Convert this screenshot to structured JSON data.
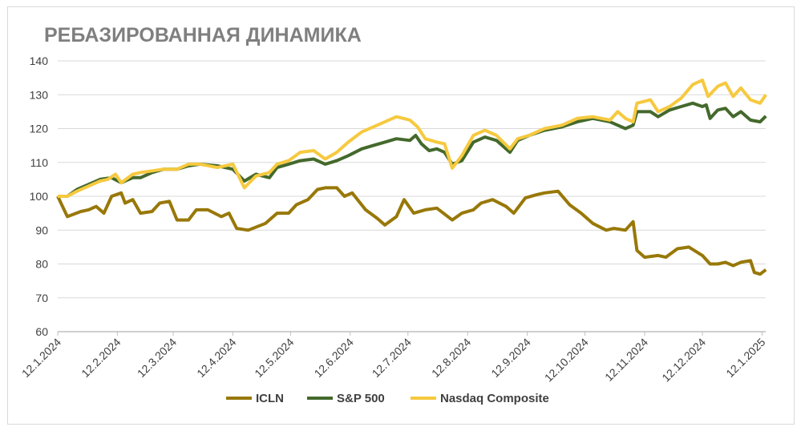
{
  "chart_data": {
    "type": "line",
    "title": "РЕБАЗИРОВАННАЯ ДИНАМИКА",
    "xlabel": "",
    "ylabel": "",
    "x_unit": "days since 12.1.2024",
    "ylim": [
      60,
      140
    ],
    "yticks": [
      60,
      70,
      80,
      90,
      100,
      110,
      120,
      130,
      140
    ],
    "xticks": [
      {
        "day": 0,
        "label": "12.1.2024"
      },
      {
        "day": 31,
        "label": "12.2.2024"
      },
      {
        "day": 60,
        "label": "12.3.2024"
      },
      {
        "day": 91,
        "label": "12.4.2024"
      },
      {
        "day": 121,
        "label": "12.5.2024"
      },
      {
        "day": 152,
        "label": "12.6.2024"
      },
      {
        "day": 182,
        "label": "12.7.2024"
      },
      {
        "day": 213,
        "label": "12.8.2024"
      },
      {
        "day": 244,
        "label": "12.9.2024"
      },
      {
        "day": 274,
        "label": "12.10.2024"
      },
      {
        "day": 305,
        "label": "12.11.2024"
      },
      {
        "day": 335,
        "label": "12.12.2024"
      },
      {
        "day": 366,
        "label": "12.1.2025"
      }
    ],
    "xlim": [
      0,
      368
    ],
    "grid": true,
    "legend_position": "bottom",
    "series": [
      {
        "name": "ICLN",
        "color": "#987808",
        "points": [
          [
            0,
            100
          ],
          [
            5,
            94
          ],
          [
            12,
            95.5
          ],
          [
            16,
            96
          ],
          [
            20,
            97
          ],
          [
            24,
            95
          ],
          [
            28,
            100
          ],
          [
            33,
            101
          ],
          [
            35,
            98
          ],
          [
            39,
            99
          ],
          [
            43,
            95
          ],
          [
            49,
            95.5
          ],
          [
            53,
            98
          ],
          [
            58,
            98.5
          ],
          [
            62,
            93
          ],
          [
            68,
            93
          ],
          [
            72,
            96
          ],
          [
            78,
            96
          ],
          [
            85,
            94
          ],
          [
            89,
            95
          ],
          [
            93,
            90.5
          ],
          [
            99,
            90
          ],
          [
            108,
            92
          ],
          [
            114,
            95
          ],
          [
            120,
            95
          ],
          [
            124,
            97.5
          ],
          [
            130,
            99
          ],
          [
            135,
            102
          ],
          [
            139,
            102.5
          ],
          [
            145,
            102.5
          ],
          [
            149,
            100
          ],
          [
            153,
            101
          ],
          [
            160,
            96
          ],
          [
            166,
            93.5
          ],
          [
            170,
            91.5
          ],
          [
            176,
            94
          ],
          [
            180,
            99
          ],
          [
            185,
            95
          ],
          [
            191,
            96
          ],
          [
            197,
            96.5
          ],
          [
            205,
            93
          ],
          [
            210,
            95
          ],
          [
            216,
            96
          ],
          [
            220,
            98
          ],
          [
            226,
            99
          ],
          [
            233,
            97
          ],
          [
            237,
            95
          ],
          [
            243,
            99.5
          ],
          [
            249,
            100.5
          ],
          [
            253,
            101
          ],
          [
            260,
            101.5
          ],
          [
            266,
            97.5
          ],
          [
            272,
            95
          ],
          [
            278,
            92
          ],
          [
            285,
            90
          ],
          [
            289,
            90.5
          ],
          [
            295,
            90
          ],
          [
            299,
            92.5
          ],
          [
            301,
            84
          ],
          [
            305,
            82
          ],
          [
            312,
            82.5
          ],
          [
            316,
            82
          ],
          [
            322,
            84.5
          ],
          [
            328,
            85
          ],
          [
            335,
            82.5
          ],
          [
            339,
            80
          ],
          [
            343,
            80
          ],
          [
            347,
            80.5
          ],
          [
            351,
            79.5
          ],
          [
            355,
            80.5
          ],
          [
            360,
            81
          ],
          [
            362,
            77.5
          ],
          [
            365,
            77
          ],
          [
            368,
            78.3
          ]
        ]
      },
      {
        "name": "S&P 500",
        "color": "#44692c",
        "points": [
          [
            0,
            100
          ],
          [
            5,
            100
          ],
          [
            10,
            102
          ],
          [
            16,
            103.5
          ],
          [
            22,
            105
          ],
          [
            28,
            105.5
          ],
          [
            33,
            104
          ],
          [
            39,
            105.5
          ],
          [
            43,
            105.5
          ],
          [
            49,
            107
          ],
          [
            55,
            108
          ],
          [
            62,
            108
          ],
          [
            68,
            109
          ],
          [
            74,
            109.5
          ],
          [
            83,
            109
          ],
          [
            91,
            108
          ],
          [
            97,
            104.5
          ],
          [
            103,
            106.5
          ],
          [
            110,
            105.5
          ],
          [
            114,
            108.5
          ],
          [
            120,
            109.5
          ],
          [
            126,
            110.5
          ],
          [
            133,
            111
          ],
          [
            139,
            109.5
          ],
          [
            145,
            110.5
          ],
          [
            151,
            112
          ],
          [
            158,
            114
          ],
          [
            164,
            115
          ],
          [
            170,
            116
          ],
          [
            176,
            117
          ],
          [
            183,
            116.5
          ],
          [
            186,
            118
          ],
          [
            189,
            115.5
          ],
          [
            193,
            113.5
          ],
          [
            197,
            114
          ],
          [
            201,
            113
          ],
          [
            205,
            109.5
          ],
          [
            210,
            110.5
          ],
          [
            216,
            116
          ],
          [
            222,
            117.5
          ],
          [
            228,
            116.5
          ],
          [
            235,
            113
          ],
          [
            239,
            116.5
          ],
          [
            245,
            118
          ],
          [
            253,
            119.5
          ],
          [
            262,
            120.5
          ],
          [
            270,
            122
          ],
          [
            278,
            123
          ],
          [
            287,
            122
          ],
          [
            291,
            121
          ],
          [
            295,
            120
          ],
          [
            299,
            121
          ],
          [
            301,
            125
          ],
          [
            308,
            125
          ],
          [
            312,
            123.5
          ],
          [
            318,
            125.5
          ],
          [
            324,
            126.5
          ],
          [
            330,
            127.5
          ],
          [
            335,
            126.5
          ],
          [
            337,
            127
          ],
          [
            339,
            123
          ],
          [
            343,
            125.5
          ],
          [
            347,
            126
          ],
          [
            351,
            123.5
          ],
          [
            355,
            125
          ],
          [
            360,
            122.5
          ],
          [
            365,
            122
          ],
          [
            368,
            123.7
          ]
        ]
      },
      {
        "name": "Nasdaq Composite",
        "color": "#f6c93f",
        "points": [
          [
            0,
            100
          ],
          [
            5,
            100
          ],
          [
            10,
            101.5
          ],
          [
            16,
            103
          ],
          [
            22,
            104.5
          ],
          [
            26,
            105
          ],
          [
            30,
            106.5
          ],
          [
            33,
            104
          ],
          [
            39,
            106.5
          ],
          [
            43,
            107
          ],
          [
            49,
            107.5
          ],
          [
            55,
            108
          ],
          [
            62,
            108
          ],
          [
            68,
            109.5
          ],
          [
            74,
            109.5
          ],
          [
            83,
            108.5
          ],
          [
            91,
            109.5
          ],
          [
            97,
            102.5
          ],
          [
            103,
            106
          ],
          [
            110,
            107
          ],
          [
            114,
            109.5
          ],
          [
            120,
            110.5
          ],
          [
            126,
            113
          ],
          [
            133,
            113.5
          ],
          [
            139,
            111
          ],
          [
            145,
            113
          ],
          [
            151,
            116
          ],
          [
            158,
            119
          ],
          [
            164,
            120.5
          ],
          [
            170,
            122
          ],
          [
            176,
            123.5
          ],
          [
            183,
            122.5
          ],
          [
            187,
            120.5
          ],
          [
            191,
            117
          ],
          [
            197,
            116
          ],
          [
            201,
            115.5
          ],
          [
            205,
            108.3
          ],
          [
            210,
            112
          ],
          [
            216,
            118
          ],
          [
            222,
            119.5
          ],
          [
            228,
            118
          ],
          [
            235,
            114
          ],
          [
            239,
            117
          ],
          [
            245,
            118
          ],
          [
            253,
            120
          ],
          [
            262,
            121
          ],
          [
            270,
            123
          ],
          [
            278,
            123.5
          ],
          [
            287,
            122.5
          ],
          [
            291,
            125
          ],
          [
            295,
            123
          ],
          [
            299,
            122
          ],
          [
            301,
            127.5
          ],
          [
            308,
            128.5
          ],
          [
            312,
            125
          ],
          [
            318,
            126.5
          ],
          [
            324,
            129
          ],
          [
            330,
            133
          ],
          [
            335,
            134.3
          ],
          [
            338,
            129.5
          ],
          [
            343,
            132.5
          ],
          [
            347,
            133.5
          ],
          [
            351,
            129.5
          ],
          [
            355,
            132
          ],
          [
            360,
            128.5
          ],
          [
            365,
            127.5
          ],
          [
            368,
            130
          ]
        ]
      }
    ]
  }
}
